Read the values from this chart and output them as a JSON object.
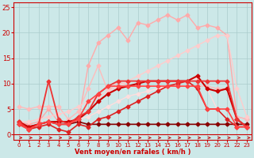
{
  "xlabel": "Vent moyen/en rafales ( km/h )",
  "xlim": [
    -0.5,
    23.5
  ],
  "ylim": [
    -1,
    26
  ],
  "xticks": [
    0,
    1,
    2,
    3,
    4,
    5,
    6,
    7,
    8,
    9,
    10,
    11,
    12,
    13,
    14,
    15,
    16,
    17,
    18,
    19,
    20,
    21,
    22,
    23
  ],
  "yticks": [
    0,
    5,
    10,
    15,
    20,
    25
  ],
  "bg_color": "#cce8e8",
  "grid_color": "#aacccc",
  "lines": [
    {
      "x": [
        0,
        1,
        2,
        3,
        4,
        5,
        6,
        7,
        8,
        9,
        10,
        11,
        12,
        13,
        14,
        15,
        16,
        17,
        18,
        19,
        20,
        21,
        22,
        23
      ],
      "y": [
        2.5,
        2.0,
        2.5,
        5.0,
        2.5,
        2.5,
        2.5,
        13.5,
        18.0,
        19.5,
        21.0,
        18.5,
        22.0,
        21.5,
        22.5,
        23.5,
        22.5,
        23.5,
        21.0,
        21.5,
        21.0,
        19.5,
        3.5,
        3.0
      ],
      "color": "#ffaaaa",
      "lw": 1.0,
      "marker": "D",
      "ms": 2.5
    },
    {
      "x": [
        0,
        1,
        2,
        3,
        4,
        5,
        6,
        7,
        8,
        9,
        10,
        11,
        12,
        13,
        14,
        15,
        16,
        17,
        18,
        19,
        20,
        21,
        22,
        23
      ],
      "y": [
        5.5,
        5.0,
        5.5,
        5.5,
        5.5,
        3.0,
        4.5,
        9.0,
        13.5,
        8.5,
        10.5,
        9.5,
        9.5,
        9.5,
        9.5,
        9.5,
        9.5,
        9.5,
        9.5,
        9.5,
        9.0,
        9.0,
        3.5,
        3.0
      ],
      "color": "#ffbbbb",
      "lw": 1.0,
      "marker": "D",
      "ms": 2.5
    },
    {
      "x": [
        0,
        1,
        2,
        3,
        4,
        5,
        6,
        7,
        8,
        9,
        10,
        11,
        12,
        13,
        14,
        15,
        16,
        17,
        18,
        19,
        20,
        21,
        22,
        23
      ],
      "y": [
        2.5,
        2.5,
        3.0,
        3.5,
        4.0,
        4.5,
        5.5,
        6.5,
        7.5,
        8.5,
        9.5,
        10.5,
        11.5,
        12.5,
        13.5,
        14.5,
        15.5,
        16.5,
        17.5,
        18.5,
        19.5,
        19.5,
        9.0,
        3.5
      ],
      "color": "#ffcccc",
      "lw": 1.0,
      "marker": "D",
      "ms": 2.5
    },
    {
      "x": [
        0,
        1,
        2,
        3,
        4,
        5,
        6,
        7,
        8,
        9,
        10,
        11,
        12,
        13,
        14,
        15,
        16,
        17,
        18,
        19,
        20,
        21,
        22,
        23
      ],
      "y": [
        2.0,
        1.5,
        2.0,
        2.5,
        2.5,
        2.5,
        3.0,
        3.5,
        4.5,
        5.5,
        6.5,
        7.5,
        8.0,
        8.5,
        9.0,
        9.5,
        10.0,
        10.5,
        11.0,
        9.0,
        5.0,
        5.0,
        1.5,
        1.5
      ],
      "color": "#ffdddd",
      "lw": 1.0,
      "marker": "D",
      "ms": 2.5
    },
    {
      "x": [
        0,
        1,
        2,
        3,
        4,
        5,
        6,
        7,
        8,
        9,
        10,
        11,
        12,
        13,
        14,
        15,
        16,
        17,
        18,
        19,
        20,
        21,
        22,
        23
      ],
      "y": [
        2.0,
        1.5,
        2.0,
        2.5,
        2.0,
        2.0,
        2.5,
        2.0,
        2.0,
        2.0,
        2.0,
        2.0,
        2.0,
        2.0,
        2.0,
        2.0,
        2.0,
        2.0,
        2.0,
        2.0,
        2.0,
        2.0,
        2.0,
        2.0
      ],
      "color": "#880000",
      "lw": 1.2,
      "marker": "D",
      "ms": 2.5
    },
    {
      "x": [
        0,
        1,
        2,
        3,
        4,
        5,
        6,
        7,
        8,
        9,
        10,
        11,
        12,
        13,
        14,
        15,
        16,
        17,
        18,
        19,
        20,
        21,
        22,
        23
      ],
      "y": [
        2.5,
        1.5,
        2.0,
        2.5,
        2.5,
        2.5,
        3.0,
        4.5,
        6.5,
        8.0,
        9.0,
        9.5,
        10.0,
        10.5,
        10.5,
        10.5,
        10.5,
        10.5,
        11.5,
        9.0,
        8.5,
        9.0,
        3.0,
        1.5
      ],
      "color": "#cc0000",
      "lw": 1.5,
      "marker": "D",
      "ms": 2.5
    },
    {
      "x": [
        0,
        1,
        2,
        3,
        4,
        5,
        6,
        7,
        8,
        9,
        10,
        11,
        12,
        13,
        14,
        15,
        16,
        17,
        18,
        19,
        20,
        21,
        22,
        23
      ],
      "y": [
        2.0,
        1.0,
        1.5,
        2.0,
        1.0,
        0.5,
        2.0,
        1.5,
        3.0,
        3.5,
        4.5,
        5.5,
        6.5,
        7.5,
        8.5,
        9.5,
        10.0,
        10.5,
        9.0,
        5.0,
        5.0,
        3.0,
        1.5,
        1.5
      ],
      "color": "#dd2222",
      "lw": 1.2,
      "marker": "D",
      "ms": 2.5
    },
    {
      "x": [
        0,
        1,
        2,
        3,
        4,
        5,
        6,
        7,
        8,
        9,
        10,
        11,
        12,
        13,
        14,
        15,
        16,
        17,
        18,
        19,
        20,
        21,
        22,
        23
      ],
      "y": [
        2.5,
        1.0,
        2.0,
        10.5,
        3.0,
        2.0,
        3.5,
        4.5,
        8.0,
        9.5,
        10.5,
        10.5,
        10.5,
        10.5,
        10.5,
        10.5,
        10.5,
        10.5,
        10.5,
        10.5,
        10.5,
        10.5,
        3.0,
        1.5
      ],
      "color": "#ee3333",
      "lw": 1.3,
      "marker": "D",
      "ms": 2.5
    },
    {
      "x": [
        0,
        1,
        2,
        3,
        4,
        5,
        6,
        7,
        8,
        9,
        10,
        11,
        12,
        13,
        14,
        15,
        16,
        17,
        18,
        19,
        20,
        21,
        22,
        23
      ],
      "y": [
        2.0,
        1.0,
        2.0,
        2.5,
        2.0,
        2.0,
        3.0,
        6.5,
        8.0,
        9.5,
        9.5,
        9.5,
        9.5,
        9.5,
        9.5,
        9.5,
        9.5,
        9.5,
        9.5,
        5.0,
        5.0,
        5.0,
        1.5,
        1.5
      ],
      "color": "#ff4444",
      "lw": 1.2,
      "marker": "D",
      "ms": 2.5
    }
  ]
}
